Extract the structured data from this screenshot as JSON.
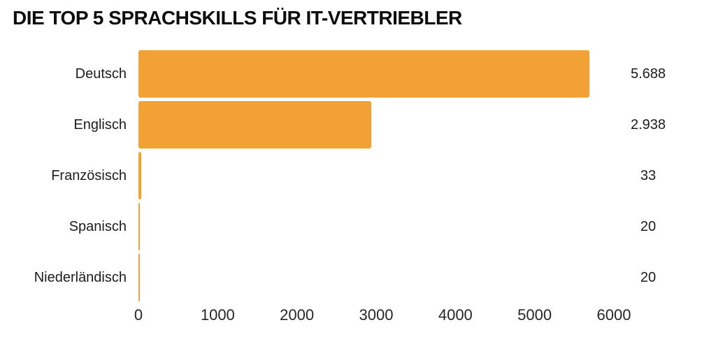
{
  "title": "DIE TOP 5 SPRACHSKILLS FÜR IT-VERTRIEBLER",
  "colors": {
    "bar": "#F2A134",
    "title_text": "#0d0d0d",
    "label_text": "#1c1c1c",
    "axis_text": "#262626",
    "background": "#ffffff"
  },
  "chart_data": {
    "type": "bar",
    "orientation": "horizontal",
    "title": "DIE TOP 5 SPRACHSKILLS FÜR IT-VERTRIEBLER",
    "categories": [
      "Deutsch",
      "Englisch",
      "Französisch",
      "Spanisch",
      "Niederländisch"
    ],
    "values": [
      5688,
      2938,
      33,
      20,
      20
    ],
    "value_labels": [
      "5.688",
      "2.938",
      "33",
      "20",
      "20"
    ],
    "xlabel": "",
    "ylabel": "",
    "xlim": [
      0,
      6000
    ],
    "x_ticks": [
      0,
      1000,
      2000,
      3000,
      4000,
      5000,
      6000
    ],
    "x_tick_labels": [
      "0",
      "1000",
      "2000",
      "3000",
      "4000",
      "5000",
      "6000"
    ],
    "grid": false,
    "legend": false,
    "bar_color": "#F2A134"
  }
}
